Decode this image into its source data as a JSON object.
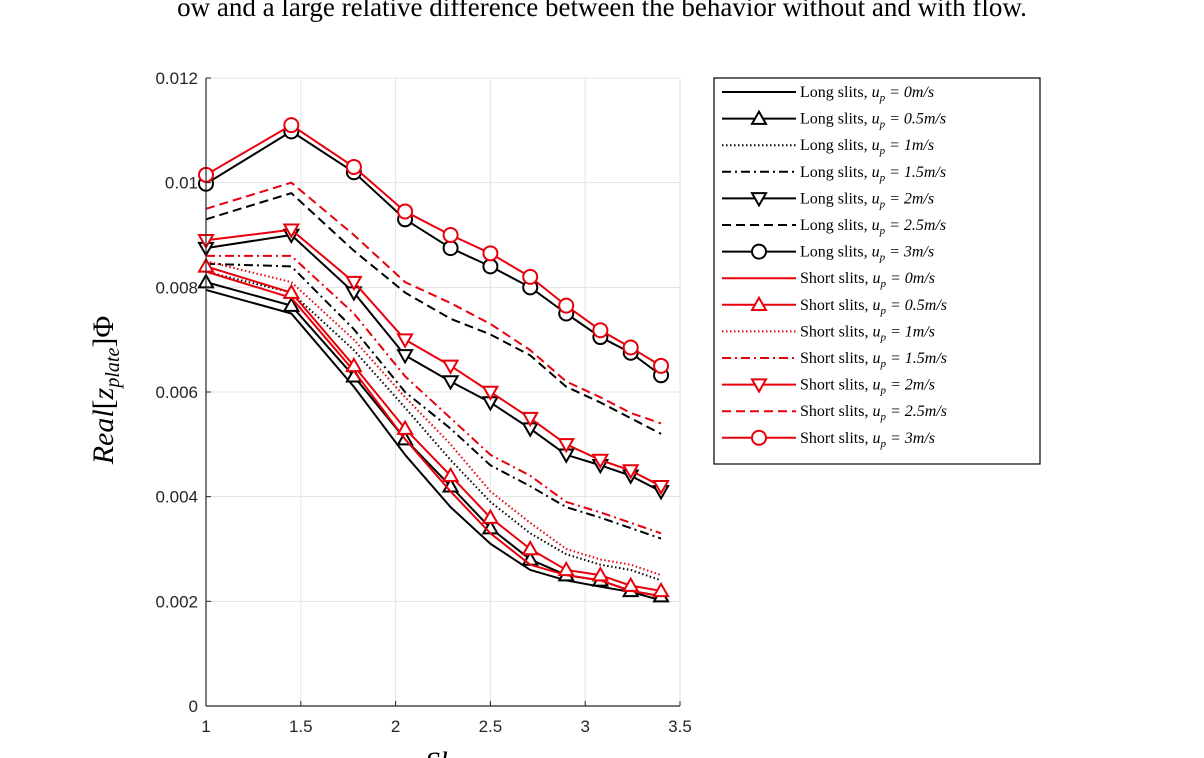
{
  "caption_fragment": "ow and a large relative difference between the behavior without and with flow.",
  "chart_data": {
    "type": "line",
    "title": "",
    "xlabel": "Sh",
    "ylabel": "Real[z_plate]Φ",
    "xlim": [
      1,
      3.5
    ],
    "ylim": [
      0,
      0.012
    ],
    "xticks": [
      1,
      1.5,
      2,
      2.5,
      3,
      3.5
    ],
    "xtick_labels": [
      "1",
      "1.5",
      "2",
      "2.5",
      "3",
      "3.5"
    ],
    "yticks": [
      0,
      0.002,
      0.004,
      0.006,
      0.008,
      0.01,
      0.012
    ],
    "ytick_labels": [
      "0",
      "0.002",
      "0.004",
      "0.006",
      "0.008",
      "0.01",
      "0.012"
    ],
    "grid": true,
    "legend_position": "outside-right",
    "x": [
      1.0,
      1.45,
      1.78,
      2.05,
      2.29,
      2.5,
      2.71,
      2.9,
      3.08,
      3.24,
      3.4
    ],
    "series": [
      {
        "name": "Long slits, u_p = 0m/s",
        "label_main": "Long slits, ",
        "label_math": "u",
        "label_sub": "p",
        "label_rest": " = 0m/s",
        "color": "#000000",
        "dash": "solid",
        "marker": "none",
        "values": [
          0.00795,
          0.0075,
          0.0061,
          0.0048,
          0.0038,
          0.0031,
          0.0026,
          0.0024,
          0.00228,
          0.00218,
          0.00202
        ]
      },
      {
        "name": "Long slits, u_p = 0.5m/s",
        "label_main": "Long slits, ",
        "label_math": "u",
        "label_sub": "p",
        "label_rest": " = 0.5m/s",
        "color": "#000000",
        "dash": "solid",
        "marker": "triangle-up",
        "values": [
          0.0081,
          0.00765,
          0.0063,
          0.0051,
          0.0042,
          0.0034,
          0.0028,
          0.0025,
          0.0024,
          0.0022,
          0.0021
        ]
      },
      {
        "name": "Long slits, u_p = 1m/s",
        "label_main": "Long slits, ",
        "label_math": "u",
        "label_sub": "p",
        "label_rest": " = 1m/s",
        "color": "#000000",
        "dash": "dotted",
        "marker": "none",
        "values": [
          0.0083,
          0.0079,
          0.0068,
          0.0057,
          0.0047,
          0.0039,
          0.0033,
          0.0029,
          0.0027,
          0.0026,
          0.0024
        ]
      },
      {
        "name": "Long slits, u_p = 1.5m/s",
        "label_main": "Long slits, ",
        "label_math": "u",
        "label_sub": "p",
        "label_rest": " = 1.5m/s",
        "color": "#000000",
        "dash": "dashdot",
        "marker": "none",
        "values": [
          0.00845,
          0.0084,
          0.0072,
          0.006,
          0.0053,
          0.0046,
          0.0042,
          0.0038,
          0.0036,
          0.0034,
          0.0032
        ]
      },
      {
        "name": "Long slits, u_p = 2m/s",
        "label_main": "Long slits, ",
        "label_math": "u",
        "label_sub": "p",
        "label_rest": " = 2m/s",
        "color": "#000000",
        "dash": "solid",
        "marker": "triangle-down",
        "values": [
          0.00875,
          0.009,
          0.0079,
          0.0067,
          0.0062,
          0.0058,
          0.0053,
          0.0048,
          0.0046,
          0.0044,
          0.0041
        ]
      },
      {
        "name": "Long slits, u_p = 2.5m/s",
        "label_main": "Long slits, ",
        "label_math": "u",
        "label_sub": "p",
        "label_rest": " = 2.5m/s",
        "color": "#000000",
        "dash": "dashed",
        "marker": "none",
        "values": [
          0.0093,
          0.0098,
          0.0087,
          0.0079,
          0.0074,
          0.0071,
          0.0067,
          0.0061,
          0.0058,
          0.0055,
          0.0052
        ]
      },
      {
        "name": "Long slits, u_p = 3m/s",
        "label_main": "Long slits, ",
        "label_math": "u",
        "label_sub": "p",
        "label_rest": " = 3m/s",
        "color": "#000000",
        "dash": "solid",
        "marker": "circle",
        "values": [
          0.00998,
          0.01098,
          0.0102,
          0.0093,
          0.00875,
          0.0084,
          0.008,
          0.0075,
          0.00705,
          0.00675,
          0.00632
        ]
      },
      {
        "name": "Short slits, u_p = 0m/s",
        "label_main": "Short slits, ",
        "label_math": "u",
        "label_sub": "p",
        "label_rest": " = 0m/s",
        "color": "#e8000b",
        "dash": "solid",
        "marker": "none",
        "values": [
          0.0083,
          0.0078,
          0.0064,
          0.0051,
          0.0041,
          0.0033,
          0.0027,
          0.0025,
          0.0024,
          0.0022,
          0.0021
        ]
      },
      {
        "name": "Short slits, u_p = 0.5m/s",
        "label_main": "Short slits, ",
        "label_math": "u",
        "label_sub": "p",
        "label_rest": " = 0.5m/s",
        "color": "#e8000b",
        "dash": "solid",
        "marker": "triangle-up",
        "values": [
          0.0084,
          0.0079,
          0.0065,
          0.0053,
          0.0044,
          0.0036,
          0.003,
          0.0026,
          0.0025,
          0.0023,
          0.0022
        ]
      },
      {
        "name": "Short slits, u_p = 1m/s",
        "label_main": "Short slits, ",
        "label_math": "u",
        "label_sub": "p",
        "label_rest": " = 1m/s",
        "color": "#e8000b",
        "dash": "dotted",
        "marker": "none",
        "values": [
          0.0085,
          0.0081,
          0.007,
          0.0059,
          0.005,
          0.0041,
          0.0035,
          0.003,
          0.0028,
          0.0027,
          0.0025
        ]
      },
      {
        "name": "Short slits, u_p = 1.5m/s",
        "label_main": "Short slits, ",
        "label_math": "u",
        "label_sub": "p",
        "label_rest": " = 1.5m/s",
        "color": "#e8000b",
        "dash": "dashdot",
        "marker": "none",
        "values": [
          0.0086,
          0.0086,
          0.0075,
          0.0063,
          0.0055,
          0.0048,
          0.0044,
          0.0039,
          0.0037,
          0.0035,
          0.0033
        ]
      },
      {
        "name": "Short slits, u_p = 2m/s",
        "label_main": "Short slits, ",
        "label_math": "u",
        "label_sub": "p",
        "label_rest": " = 2m/s",
        "color": "#e8000b",
        "dash": "solid",
        "marker": "triangle-down",
        "values": [
          0.0089,
          0.0091,
          0.0081,
          0.007,
          0.0065,
          0.006,
          0.0055,
          0.005,
          0.0047,
          0.0045,
          0.0042
        ]
      },
      {
        "name": "Short slits, u_p = 2.5m/s",
        "label_main": "Short slits, ",
        "label_math": "u",
        "label_sub": "p",
        "label_rest": " = 2.5m/s",
        "color": "#e8000b",
        "dash": "dashed",
        "marker": "none",
        "values": [
          0.0095,
          0.01,
          0.009,
          0.0081,
          0.0077,
          0.0073,
          0.0068,
          0.0062,
          0.0059,
          0.0056,
          0.0054
        ]
      },
      {
        "name": "Short slits, u_p = 3m/s",
        "label_main": "Short slits, ",
        "label_math": "u",
        "label_sub": "p",
        "label_rest": " = 3m/s",
        "color": "#e8000b",
        "dash": "solid",
        "marker": "circle",
        "values": [
          0.01015,
          0.0111,
          0.0103,
          0.00945,
          0.009,
          0.00865,
          0.0082,
          0.00765,
          0.00718,
          0.00685,
          0.0065
        ]
      }
    ]
  }
}
